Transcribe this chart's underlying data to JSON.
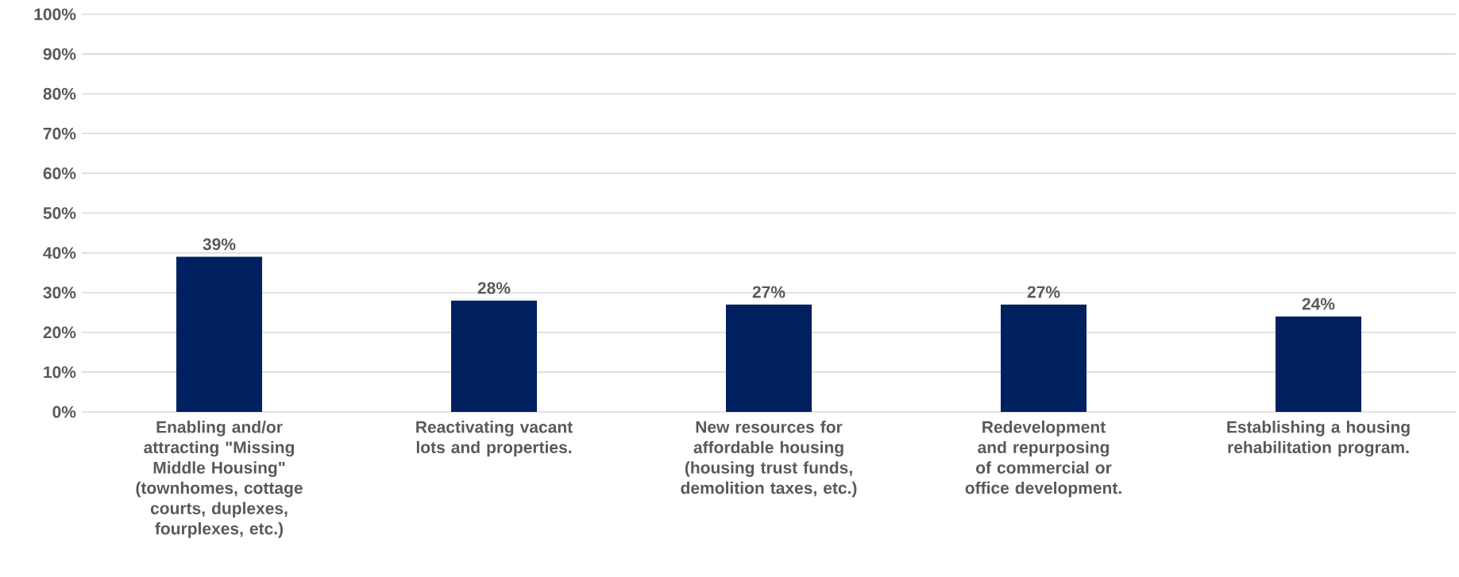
{
  "chart_data": {
    "type": "bar",
    "categories": [
      "Enabling and/or attracting \"Missing Middle Housing\" (townhomes, cottage courts, duplexes, fourplexes, etc.)",
      "Reactivating vacant lots and properties.",
      "New resources for affordable housing (housing trust funds, demolition taxes, etc.)",
      "Redevelopment and repurposing of commercial or office development.",
      "Establishing a housing rehabilitation program."
    ],
    "values": [
      39,
      28,
      27,
      27,
      24
    ],
    "value_labels": [
      "39%",
      "28%",
      "27%",
      "27%",
      "24%"
    ],
    "color": "#002060",
    "ylim": [
      0,
      100
    ],
    "yticks": [
      {
        "value": 0,
        "label": "0%"
      },
      {
        "value": 10,
        "label": "10%"
      },
      {
        "value": 20,
        "label": "20%"
      },
      {
        "value": 30,
        "label": "30%"
      },
      {
        "value": 40,
        "label": "40%"
      },
      {
        "value": 50,
        "label": "50%"
      },
      {
        "value": 60,
        "label": "60%"
      },
      {
        "value": 70,
        "label": "70%"
      },
      {
        "value": 80,
        "label": "80%"
      },
      {
        "value": 90,
        "label": "90%"
      },
      {
        "value": 100,
        "label": "100%"
      }
    ],
    "grid": "y"
  }
}
